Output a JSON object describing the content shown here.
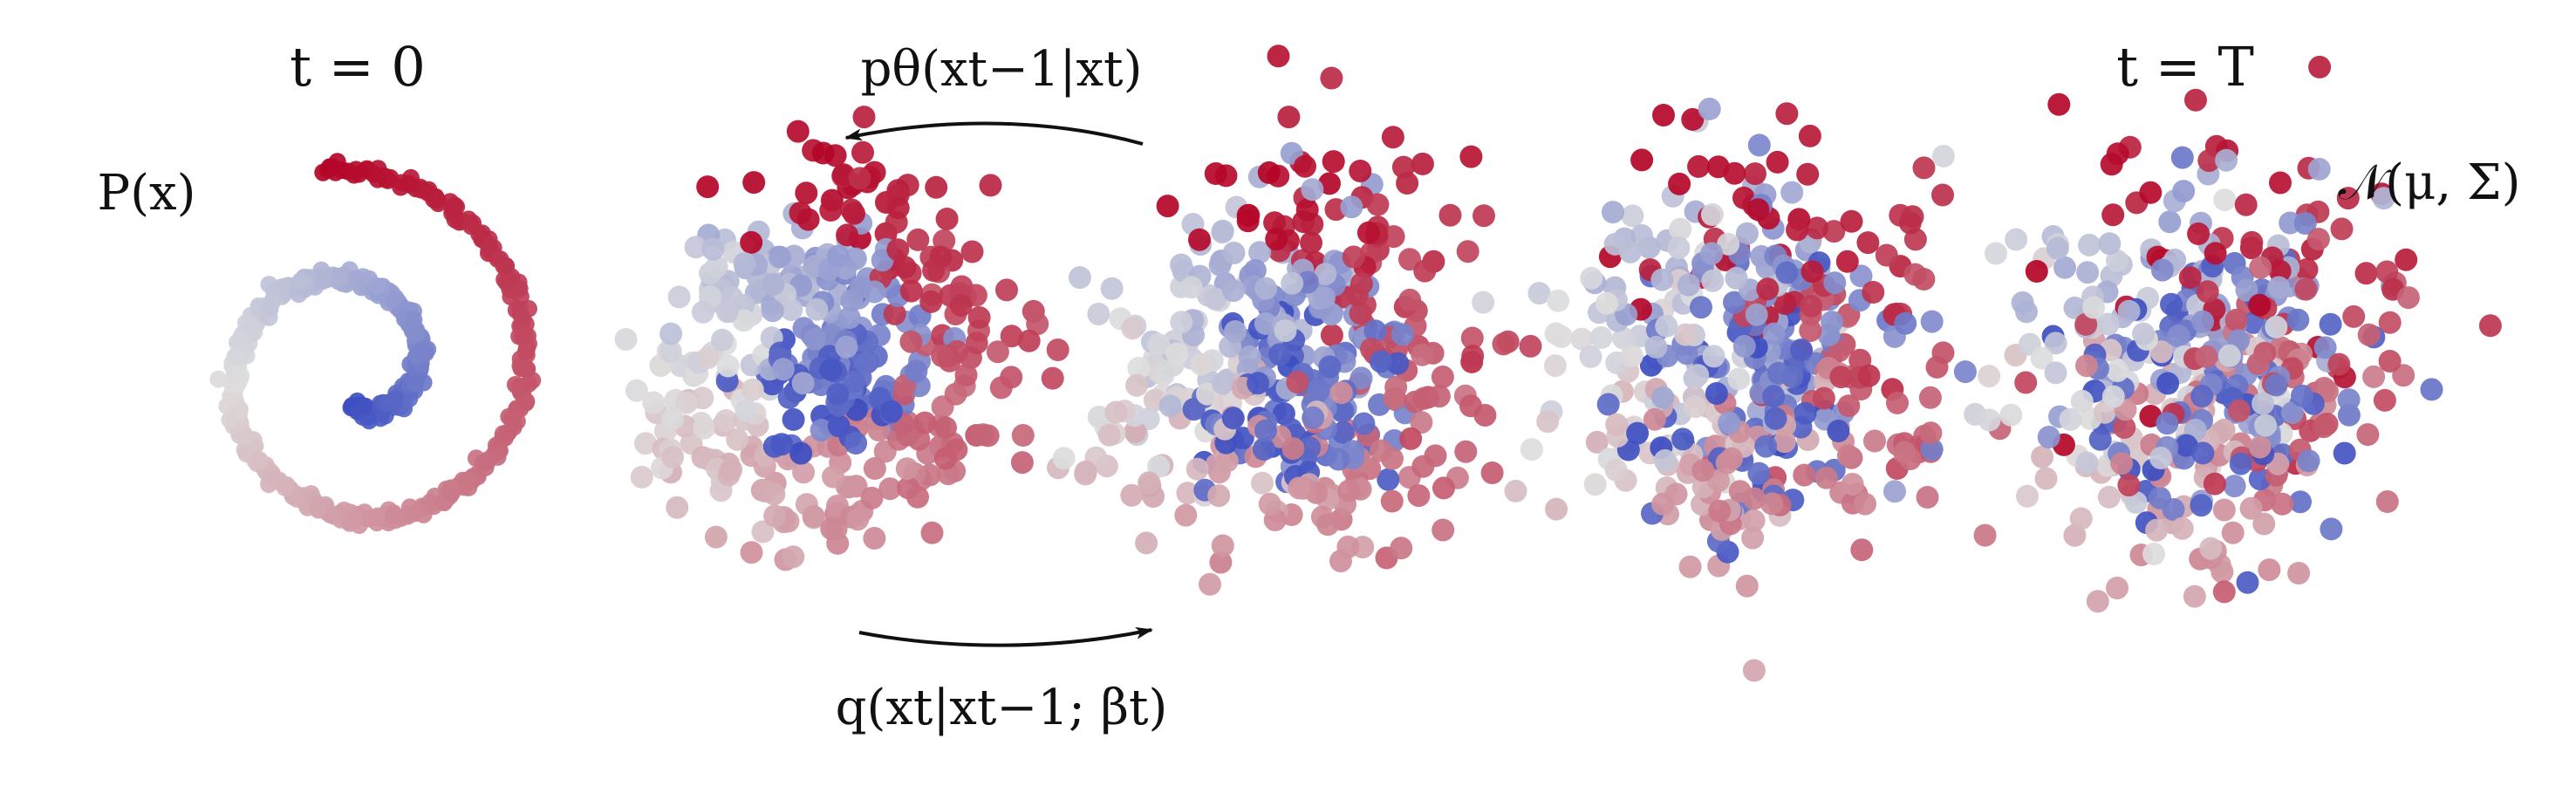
{
  "title_t0": "t = 0",
  "title_tT": "t = T",
  "label_data_dist": "P(x)",
  "label_prior": "𝒩(μ, Σ)",
  "label_reverse": "pθ(xt−1|xt)",
  "label_forward": "q(xt|xt−1; βt)",
  "stages": [
    "spiral",
    "noise-1",
    "noise-2",
    "noise-3",
    "noise-4"
  ],
  "colormap": {
    "name": "coolwarm",
    "low": "#3b4cc0",
    "mid": "#dddddd",
    "high": "#b40426"
  },
  "arrows": [
    "reverse-process-arrow",
    "forward-process-arrow"
  ]
}
